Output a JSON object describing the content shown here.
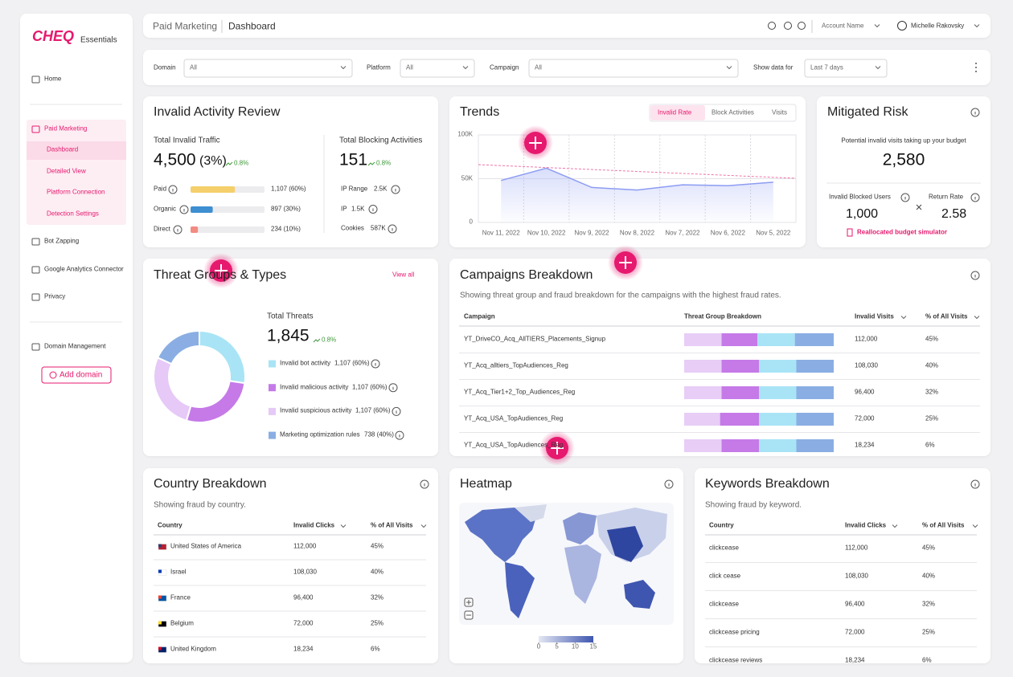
{
  "sidebar": {
    "logo": "CHEQ",
    "product": "Essentials",
    "items": [
      {
        "label": "Home"
      },
      {
        "label": "Paid Marketing",
        "children": [
          "Dashboard",
          "Detailed View",
          "Platform Connection",
          "Detection Settings"
        ]
      },
      {
        "label": "Bot Zapping"
      },
      {
        "label": "Google Analytics Connector"
      },
      {
        "label": "Privacy"
      },
      {
        "label": "Domain Management"
      }
    ],
    "add_domain": "Add domain"
  },
  "topbar": {
    "breadcrumb": [
      "Paid Marketing",
      "Dashboard"
    ],
    "account": "Account Name",
    "user": "Michelle Rakovsky"
  },
  "filters": [
    {
      "label": "Domain",
      "value": "All"
    },
    {
      "label": "Platform",
      "value": "All"
    },
    {
      "label": "Campaign",
      "value": "All"
    },
    {
      "label": "Show data for",
      "value": "Last 7 days"
    }
  ],
  "invalid_activity": {
    "title": "Invalid Activity Review",
    "traffic_label": "Total Invalid Traffic",
    "traffic_value": "4,500",
    "traffic_pct": "(3%)",
    "traffic_change": "0.8%",
    "sources": [
      {
        "name": "Paid",
        "value": 60,
        "value_label": "1,107 (60%)",
        "color": "#f5cf6b"
      },
      {
        "name": "Organic",
        "value": 30,
        "value_label": "897 (30%)",
        "color": "#3d8fd1"
      },
      {
        "name": "Direct",
        "value": 10,
        "value_label": "234 (10%)",
        "color": "#f28b82"
      }
    ],
    "blocking_label": "Total Blocking Activities",
    "blocking_value": "151",
    "blocking_change": "0.8%",
    "blocking_items": [
      {
        "label": "IP Range",
        "value": "2.5K"
      },
      {
        "label": "IP",
        "value": "1.5K"
      },
      {
        "label": "Cookies",
        "value": "587K"
      }
    ]
  },
  "chart_data": [
    {
      "type": "line",
      "title": "Trends",
      "tabs": [
        "Invalid Rate",
        "Block Activities",
        "Visits"
      ],
      "categories": [
        "Nov 11, 2022",
        "Nov 10, 2022",
        "Nov 9, 2022",
        "Nov 8, 2022",
        "Nov 7, 2022",
        "Nov 6, 2022",
        "Nov 5, 2022"
      ],
      "series": [
        {
          "color": "#8d9cf2",
          "values": [
            48000,
            62000,
            40000,
            37000,
            43000,
            42000,
            46000
          ]
        }
      ],
      "ylim": [
        0,
        100000
      ],
      "yticks": [
        0,
        {
          "value": 50000,
          "label": "50K"
        },
        {
          "value": 100000,
          "label": "100K"
        }
      ],
      "grid": true
    },
    {
      "type": "pie",
      "title": "Threat Groups & Types",
      "link": "View all",
      "total_label": "Total Threats",
      "total": "1,845",
      "change": "0.8%",
      "categories": [
        "Invalid bot activity",
        "Invalid malicious activity",
        "Invalid suspicious activity",
        "Marketing optimization rules"
      ],
      "values": [
        60,
        60,
        60,
        40
      ],
      "value_labels": [
        "1,107 (60%)",
        "1,107 (60%)",
        "1,107 (60%)",
        "738 (40%)"
      ],
      "colors": [
        "#a8e4f5",
        "#c57ae8",
        "#e6c9f7",
        "#8aaee3"
      ]
    }
  ],
  "mitigated": {
    "title": "Mitigated Risk",
    "description": "Potential invalid visits taking up your budget",
    "value": "2,580",
    "blocked_label": "Invalid Blocked Users",
    "blocked_value": "1,000",
    "return_label": "Return Rate",
    "return_value": "2.58",
    "link": "Reallocated budget simulator"
  },
  "campaigns": {
    "title": "Campaigns Breakdown",
    "subtitle": "Showing threat group and fraud breakdown for the campaigns with the highest fraud rates.",
    "columns": [
      "Campaign",
      "Threat Group Breakdown",
      "Invalid Visits",
      "% of All Visits"
    ],
    "segment_colors": [
      "#e8cdf7",
      "#c57ae8",
      "#a8e4f5",
      "#8aaee3"
    ],
    "rows": [
      {
        "name": "YT_DriveCO_Acq_AllTIERS_Placements_Signup",
        "breakdown": [
          25,
          24,
          25,
          26
        ],
        "visits": "112,000",
        "pct": "45%"
      },
      {
        "name": "YT_Acq_alltiers_TopAudiences_Reg",
        "breakdown": [
          25,
          25,
          25,
          25
        ],
        "visits": "108,030",
        "pct": "40%"
      },
      {
        "name": "YT_Acq_Tier1+2_Top_Audiences_Reg",
        "breakdown": [
          25,
          25,
          25,
          25
        ],
        "visits": "96,400",
        "pct": "32%"
      },
      {
        "name": "YT_Acq_USA_TopAudiences_Reg",
        "breakdown": [
          24,
          26,
          25,
          25
        ],
        "visits": "72,000",
        "pct": "25%"
      },
      {
        "name": "YT_Acq_USA_TopAudiences_Reg",
        "breakdown": [
          25,
          25,
          25,
          25
        ],
        "visits": "18,234",
        "pct": "6%"
      }
    ]
  },
  "country": {
    "title": "Country Breakdown",
    "subtitle": "Showing fraud by country.",
    "columns": [
      "Country",
      "Invalid Clicks",
      "% of All Visits"
    ],
    "rows": [
      {
        "name": "United States of America",
        "clicks": "112,000",
        "pct": "45%"
      },
      {
        "name": "Israel",
        "clicks": "108,030",
        "pct": "40%"
      },
      {
        "name": "France",
        "clicks": "96,400",
        "pct": "32%"
      },
      {
        "name": "Belgium",
        "clicks": "72,000",
        "pct": "25%"
      },
      {
        "name": "United Kingdom",
        "clicks": "18,234",
        "pct": "6%"
      }
    ]
  },
  "heatmap": {
    "title": "Heatmap",
    "scale_range": [
      0,
      15
    ],
    "scale_ticks": [
      0,
      5,
      10,
      15
    ]
  },
  "keywords": {
    "title": "Keywords Breakdown",
    "subtitle": "Showing fraud by keyword.",
    "columns": [
      "Country",
      "Invalid Clicks",
      "% of All Visits"
    ],
    "rows": [
      {
        "name": "clickcease",
        "clicks": "112,000",
        "pct": "45%"
      },
      {
        "name": "click cease",
        "clicks": "108,030",
        "pct": "40%"
      },
      {
        "name": "clickcease",
        "clicks": "96,400",
        "pct": "32%"
      },
      {
        "name": "clickcease pricing",
        "clicks": "72,000",
        "pct": "25%"
      },
      {
        "name": "clickcease reviews",
        "clicks": "18,234",
        "pct": "6%"
      }
    ]
  }
}
